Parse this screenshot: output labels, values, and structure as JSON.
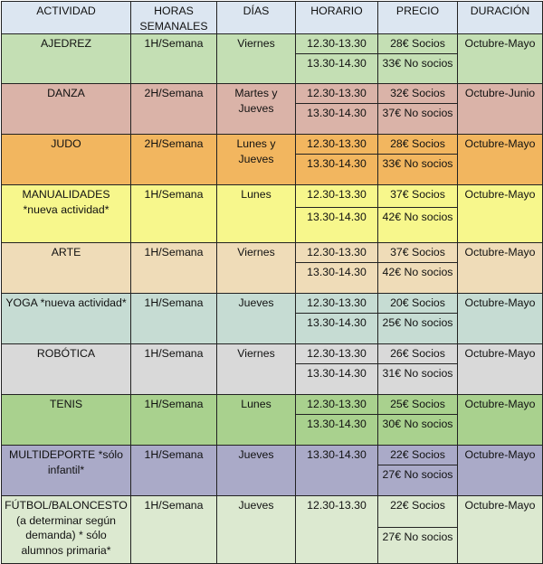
{
  "headers": [
    "ACTIVIDAD",
    "HORAS SEMANALES",
    "DÍAS",
    "HORARIO",
    "PRECIO",
    "DURACIÓN"
  ],
  "rows": [
    {
      "actividad": "AJEDREZ",
      "horas": "1H/Semana",
      "dias": "Viernes",
      "horario": [
        "12.30-13.30",
        "13.30-14.30"
      ],
      "precio": [
        "28€ Socios",
        "33€ No socios"
      ],
      "duracion": "Octubre-Mayo",
      "color": "#c4dfb4"
    },
    {
      "actividad": "DANZA",
      "horas": "2H/Semana",
      "dias": "Martes y Jueves",
      "horario": [
        "12.30-13.30",
        "13.30-14.30"
      ],
      "precio": [
        "32€ Socios",
        "37€ No socios"
      ],
      "duracion": "Octubre-Junio",
      "color": "#dab3a8"
    },
    {
      "actividad": "JUDO",
      "horas": "2H/Semana",
      "dias": "Lunes y Jueves",
      "horario": [
        "12.30-13.30",
        "13.30-14.30"
      ],
      "precio": [
        "28€ Socios",
        "33€ No socios"
      ],
      "duracion": "Octubre-Mayo",
      "color": "#f2b65f"
    },
    {
      "actividad": "MANUALIDADES *nueva actividad*",
      "horas": "1H/Semana",
      "dias": "Lunes",
      "horario": [
        "12.30-13.30",
        "13.30-14.30"
      ],
      "precio": [
        "37€ Socios",
        "42€ No socios"
      ],
      "duracion": "Octubre-Mayo",
      "color": "#f7f78c"
    },
    {
      "actividad": "ARTE",
      "horas": "1H/Semana",
      "dias": "Viernes",
      "horario": [
        "12.30-13.30",
        "13.30-14.30"
      ],
      "precio": [
        "37€ Socios",
        "42€ No socios"
      ],
      "duracion": "Octubre-Mayo",
      "color": "#efdcb8"
    },
    {
      "actividad": "YOGA *nueva actividad*",
      "horas": "1H/Semana",
      "dias": "Jueves",
      "horario": [
        "12.30-13.30",
        "13.30-14.30"
      ],
      "precio": [
        "20€ Socios",
        "25€ No socios"
      ],
      "duracion": "Octubre-Mayo",
      "color": "#c6dcd3"
    },
    {
      "actividad": "ROBÓTICA",
      "horas": "1H/Semana",
      "dias": "Viernes",
      "horario": [
        "12.30-13.30",
        "13.30-14.30"
      ],
      "precio": [
        "26€ Socios",
        "31€ No socios"
      ],
      "duracion": "Octubre-Mayo",
      "color": "#d9d9d9"
    },
    {
      "actividad": "TENIS",
      "horas": "1H/Semana",
      "dias": "Lunes",
      "horario": [
        "12.30-13.30",
        "13.30-14.30"
      ],
      "precio": [
        "25€ Socios",
        "30€ No socios"
      ],
      "duracion": "Octubre-Mayo",
      "color": "#a9d18e"
    },
    {
      "actividad": "MULTIDEPORTE *sólo infantil*",
      "horas": "1H/Semana",
      "dias": "Jueves",
      "horario": [
        "13.30-14.30"
      ],
      "precio": [
        "22€ Socios",
        "27€ No socios"
      ],
      "duracion": "Octubre-Mayo",
      "color": "#aaaac8"
    },
    {
      "actividad": "FÚTBOL/BALONCESTO (a determinar según demanda) * sólo alumnos primaria*",
      "horas": "1H/Semana",
      "dias": "Jueves",
      "horario": [
        "12.30-13.30"
      ],
      "precio": [
        "22€ Socios",
        "27€ No socios"
      ],
      "duracion": "Octubre-Mayo",
      "color": "#dce9d0"
    }
  ]
}
